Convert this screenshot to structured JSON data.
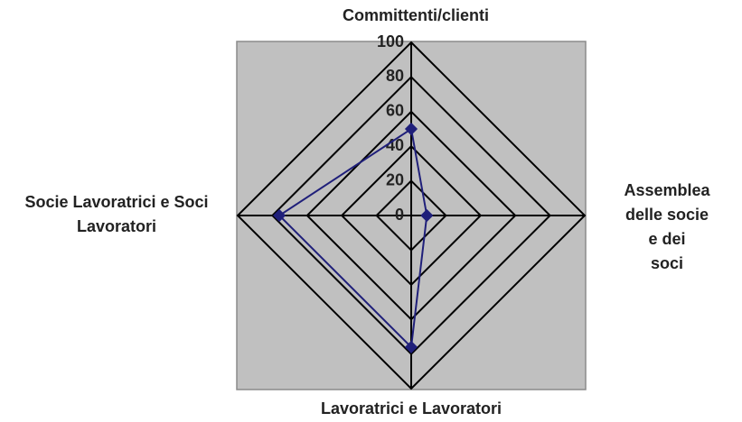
{
  "chart_data": {
    "type": "radar",
    "categories": [
      "Committenti/clienti",
      "Assemblea\ndelle socie e dei\nsoci",
      "Lavoratrici e Lavoratori",
      "Socie Lavoratrici e Soci\nLavoratori"
    ],
    "series": [
      {
        "color": "#1f1f7a",
        "values": [
          50,
          9,
          76,
          76
        ]
      }
    ],
    "rlim": [
      0,
      100
    ],
    "rticks": [
      0,
      20,
      40,
      60,
      80,
      100
    ],
    "grid": true,
    "background": "#c0c0c0"
  }
}
